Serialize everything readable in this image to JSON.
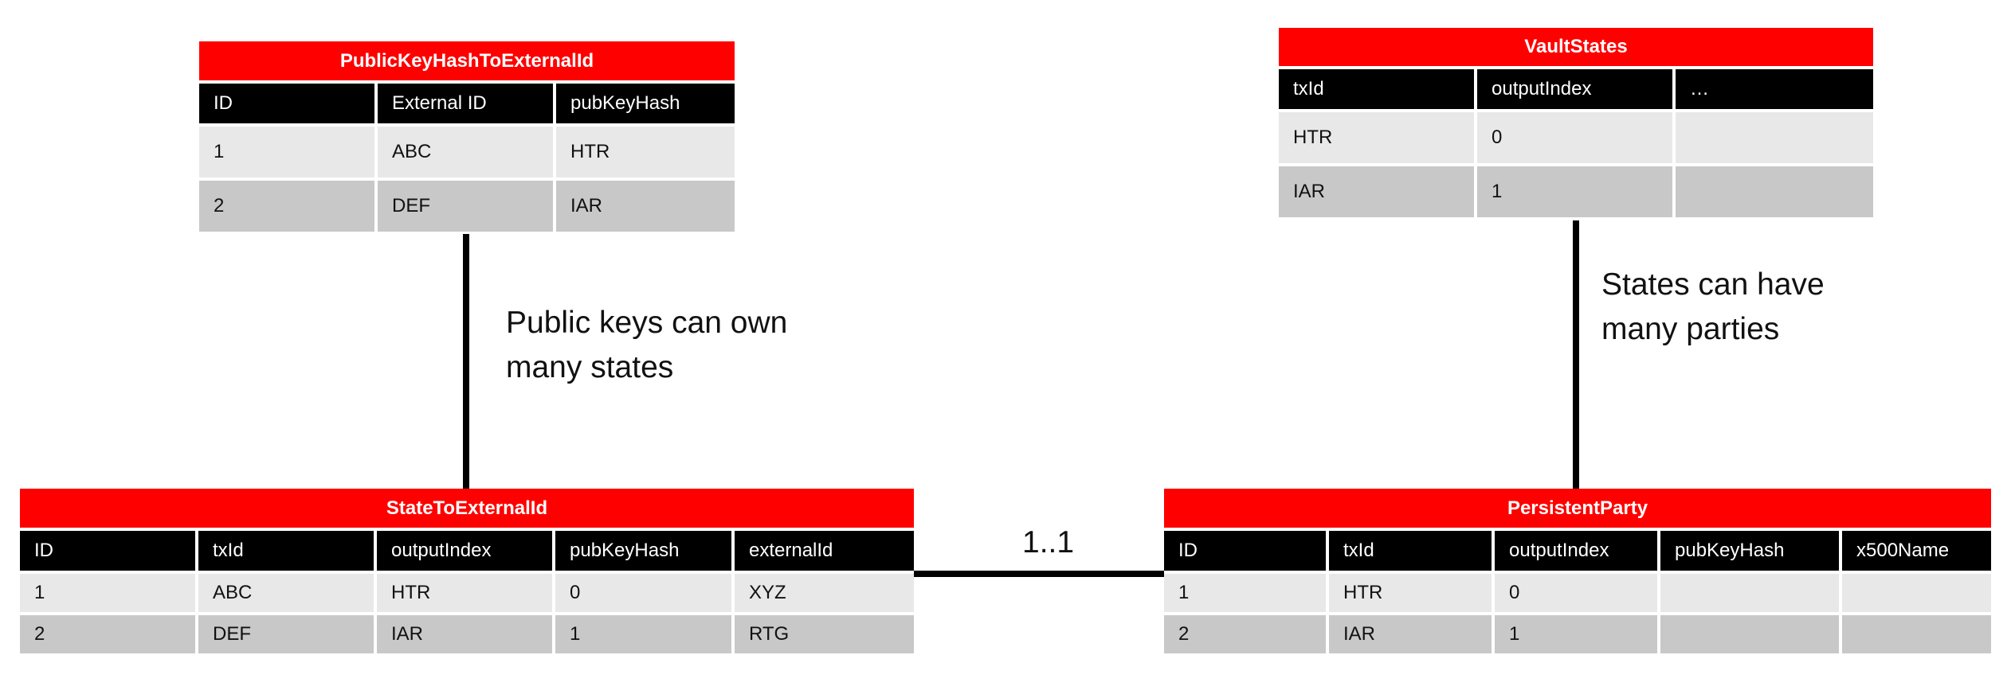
{
  "tables": {
    "pkh": {
      "title": "PublicKeyHashToExternalId",
      "headers": [
        "ID",
        "External ID",
        "pubKeyHash"
      ],
      "rows": [
        [
          "1",
          "ABC",
          "HTR"
        ],
        [
          "2",
          "DEF",
          "IAR"
        ]
      ]
    },
    "vault": {
      "title": "VaultStates",
      "headers": [
        "txId",
        "outputIndex",
        "…"
      ],
      "rows": [
        [
          "HTR",
          "0",
          ""
        ],
        [
          "IAR",
          "1",
          ""
        ]
      ]
    },
    "state": {
      "title": "StateToExternalId",
      "headers": [
        "ID",
        "txId",
        "outputIndex",
        "pubKeyHash",
        "externalId"
      ],
      "rows": [
        [
          "1",
          "ABC",
          "HTR",
          "0",
          "XYZ"
        ],
        [
          "2",
          "DEF",
          "IAR",
          "1",
          "RTG"
        ]
      ]
    },
    "party": {
      "title": "PersistentParty",
      "headers": [
        "ID",
        "txId",
        "outputIndex",
        "pubKeyHash",
        "x500Name"
      ],
      "rows": [
        [
          "1",
          "HTR",
          "0",
          "",
          ""
        ],
        [
          "2",
          "IAR",
          "1",
          "",
          ""
        ]
      ]
    }
  },
  "notes": {
    "pkh_line1": "Public keys can own",
    "pkh_line2": "many states",
    "vault_line1": "States can have",
    "vault_line2": "many parties"
  },
  "cardinality": "1..1",
  "colors": {
    "title_bg": "#ff0000",
    "header_bg": "#000000",
    "row1_bg": "#e8e8e8",
    "row2_bg": "#c8c8c8"
  }
}
